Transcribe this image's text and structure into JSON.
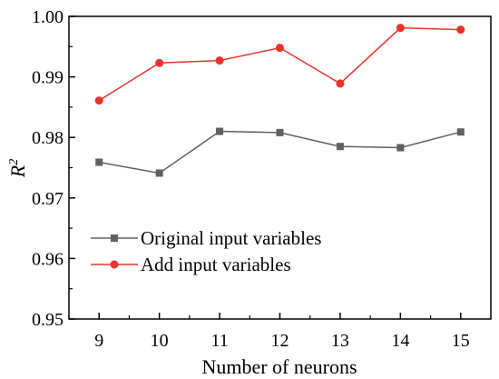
{
  "chart_data": {
    "type": "line",
    "title": "",
    "xlabel": "Number of neurons",
    "ylabel": "R²",
    "ylabel_base": "R",
    "ylabel_sup": "2",
    "x": [
      9,
      10,
      11,
      12,
      13,
      14,
      15
    ],
    "xlim": [
      8.5,
      15.5
    ],
    "ylim": [
      0.95,
      1.0
    ],
    "xticks": [
      "9",
      "10",
      "11",
      "12",
      "13",
      "14",
      "15"
    ],
    "yticks": [
      "0.95",
      "0.96",
      "0.97",
      "0.98",
      "0.99",
      "1.00"
    ],
    "grid": false,
    "legend_position": "lower-left",
    "series": [
      {
        "name": "Original input variables",
        "color": "#606060",
        "marker": "square",
        "values": [
          0.9759,
          0.9741,
          0.981,
          0.9808,
          0.9785,
          0.9783,
          0.9809
        ]
      },
      {
        "name": "Add input variables",
        "color": "#e8332c",
        "marker": "circle",
        "values": [
          0.9861,
          0.9923,
          0.9927,
          0.9948,
          0.9889,
          0.9981,
          0.9978
        ]
      }
    ]
  }
}
